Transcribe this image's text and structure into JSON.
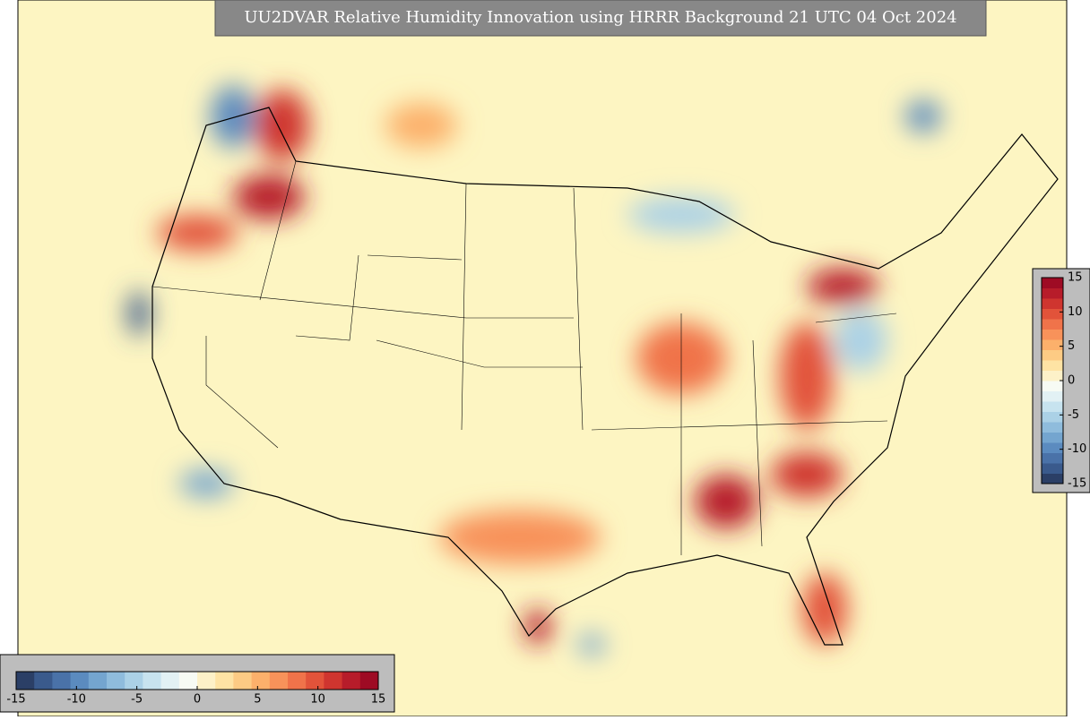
{
  "title": "UU2DVAR Relative Humidity Innovation using HRRR Background 21 UTC 04 Oct 2024",
  "colorbar": {
    "lim": [
      -15,
      15
    ],
    "ticks": [
      -15,
      -10,
      -5,
      0,
      5,
      10,
      15
    ],
    "colors": [
      "#2b3f66",
      "#3a5a8c",
      "#4a72a8",
      "#5b8bbf",
      "#74a5cf",
      "#8fbcdc",
      "#abd1e6",
      "#c7e3ef",
      "#e2f1f4",
      "#f7fbf4",
      "#fdf1c8",
      "#fee3a4",
      "#fdcb84",
      "#fcb06b",
      "#f8925a",
      "#f0734a",
      "#e2533a",
      "#cf352f",
      "#b71c2a",
      "#9e0b24"
    ]
  }
}
